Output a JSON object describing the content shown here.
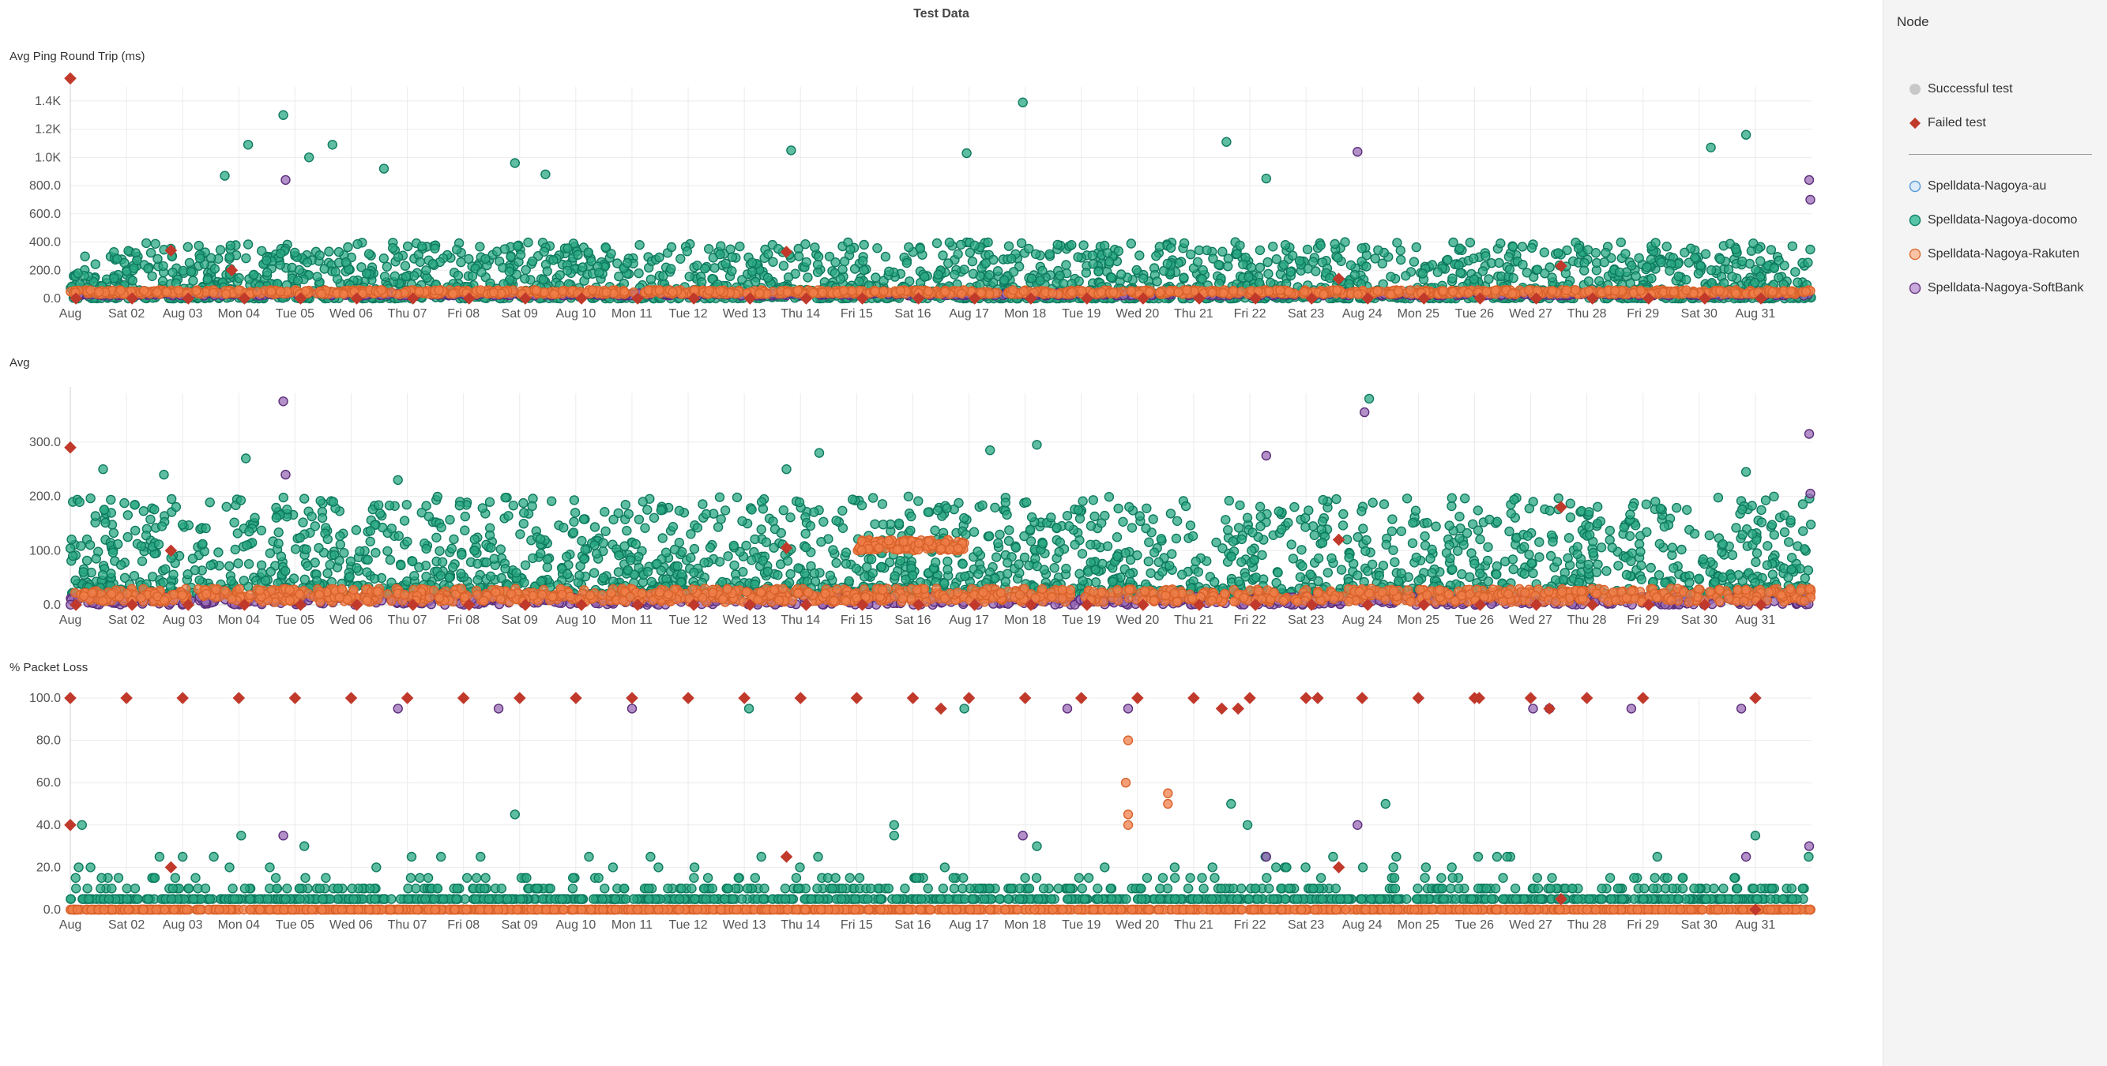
{
  "page": {
    "title": "Test Data"
  },
  "sidebar": {
    "title": "Node",
    "status_legend": [
      {
        "label": "Successful test",
        "shape": "circle",
        "color": "#c8c8c8"
      },
      {
        "label": "Failed test",
        "shape": "diamond",
        "color": "#c0392b"
      }
    ],
    "node_legend": [
      {
        "label": "Spelldata-Nagoya-au",
        "color": "#a9cdef",
        "stroke": "#5b9bd5"
      },
      {
        "label": "Spelldata-Nagoya-docomo",
        "color": "#57c4a8",
        "stroke": "#12856a"
      },
      {
        "label": "Spelldata-Nagoya-Rakuten",
        "color": "#f7a477",
        "stroke": "#e0703a"
      },
      {
        "label": "Spelldata-Nagoya-SoftBank",
        "color": "#b38bc9",
        "stroke": "#6c3d87"
      }
    ]
  },
  "colors": {
    "au": "#a9cdef",
    "docomo": "#2aa882",
    "docomo_stroke": "#0e7a5f",
    "rakuten": "#f07f4a",
    "rakuten_stroke": "#d9622a",
    "softbank": "#9a6bb5",
    "softbank_stroke": "#5b2d7a",
    "failed": "#c0392b"
  },
  "x_axis": {
    "start": "2025-08-01",
    "end": "2025-09-01",
    "tick_labels": [
      "Aug",
      "Sat 02",
      "Aug 03",
      "Mon 04",
      "Tue 05",
      "Wed 06",
      "Thu 07",
      "Fri 08",
      "Sat 09",
      "Aug 10",
      "Mon 11",
      "Tue 12",
      "Wed 13",
      "Thu 14",
      "Fri 15",
      "Sat 16",
      "Aug 17",
      "Mon 18",
      "Tue 19",
      "Wed 20",
      "Thu 21",
      "Fri 22",
      "Sat 23",
      "Aug 24",
      "Mon 25",
      "Tue 26",
      "Wed 27",
      "Thu 28",
      "Fri 29",
      "Sat 30",
      "Aug 31"
    ]
  },
  "chart_data": [
    {
      "type": "scatter",
      "title": "Avg Ping Round Trip (ms)",
      "x_range": [
        "2025-08-01",
        "2025-09-01"
      ],
      "ylim": [
        0,
        1500
      ],
      "y_ticks": [
        0,
        200,
        400,
        600,
        800,
        1000,
        1200,
        1400
      ],
      "y_tick_labels": [
        "0.0",
        "200.0",
        "400.0",
        "600.0",
        "800.0",
        "1.0K",
        "1.2K",
        "1.4K"
      ],
      "grid": true,
      "series": [
        {
          "name": "Spelldata-Nagoya-docomo",
          "typical_band": [
            0,
            400
          ],
          "outliers": [
            {
              "x": "2025-08-03T18:00",
              "y": 870
            },
            {
              "x": "2025-08-04T04:00",
              "y": 1090
            },
            {
              "x": "2025-08-04T19:00",
              "y": 1300
            },
            {
              "x": "2025-08-05T06:00",
              "y": 1000
            },
            {
              "x": "2025-08-05T16:00",
              "y": 1090
            },
            {
              "x": "2025-08-06T14:00",
              "y": 920
            },
            {
              "x": "2025-08-08T22:00",
              "y": 960
            },
            {
              "x": "2025-08-09T11:00",
              "y": 880
            },
            {
              "x": "2025-08-13T20:00",
              "y": 1050
            },
            {
              "x": "2025-08-16T23:00",
              "y": 1030
            },
            {
              "x": "2025-08-17T23:00",
              "y": 1390
            },
            {
              "x": "2025-08-21T14:00",
              "y": 1110
            },
            {
              "x": "2025-08-22T07:00",
              "y": 850
            },
            {
              "x": "2025-08-30T05:00",
              "y": 1070
            },
            {
              "x": "2025-08-30T20:00",
              "y": 1160
            }
          ]
        },
        {
          "name": "Spelldata-Nagoya-Rakuten",
          "typical_band": [
            30,
            60
          ]
        },
        {
          "name": "Spelldata-Nagoya-SoftBank",
          "typical_band": [
            20,
            40
          ],
          "outliers": [
            {
              "x": "2025-08-04T20:00",
              "y": 840
            },
            {
              "x": "2025-08-23T22:00",
              "y": 1040
            },
            {
              "x": "2025-08-31T23:00",
              "y": 840
            },
            {
              "x": "2025-08-31T23:30",
              "y": 700
            }
          ]
        }
      ],
      "failed": [
        {
          "x": "2025-08-01T00:00",
          "y": 1560
        },
        {
          "x": "2025-08-02T19:00",
          "y": 340
        },
        {
          "x": "2025-08-03T21:00",
          "y": 200
        },
        {
          "x": "2025-08-13T18:00",
          "y": 330
        },
        {
          "x": "2025-08-23T14:00",
          "y": 140
        },
        {
          "x": "2025-08-27T13:00",
          "y": 230
        }
      ]
    },
    {
      "type": "scatter",
      "title": "Avg",
      "x_range": [
        "2025-08-01",
        "2025-09-01"
      ],
      "ylim": [
        0,
        390
      ],
      "y_ticks": [
        0,
        100,
        200,
        300
      ],
      "y_tick_labels": [
        "0.0",
        "100.0",
        "200.0",
        "300.0"
      ],
      "grid": true,
      "series": [
        {
          "name": "Spelldata-Nagoya-docomo",
          "typical_band": [
            20,
            200
          ],
          "outliers": [
            {
              "x": "2025-08-01T14:00",
              "y": 250
            },
            {
              "x": "2025-08-02T16:00",
              "y": 240
            },
            {
              "x": "2025-08-04T03:00",
              "y": 270
            },
            {
              "x": "2025-08-06T20:00",
              "y": 230
            },
            {
              "x": "2025-08-13T18:00",
              "y": 250
            },
            {
              "x": "2025-08-14T08:00",
              "y": 280
            },
            {
              "x": "2025-08-17T09:00",
              "y": 285
            },
            {
              "x": "2025-08-18T05:00",
              "y": 295
            },
            {
              "x": "2025-08-24T03:00",
              "y": 380
            },
            {
              "x": "2025-08-30T20:00",
              "y": 245
            }
          ]
        },
        {
          "name": "Spelldata-Nagoya-Rakuten",
          "typical_band": [
            5,
            30
          ],
          "plateau": {
            "from": "2025-08-15T00:00",
            "to": "2025-08-16T22:00",
            "y": 110
          }
        },
        {
          "name": "Spelldata-Nagoya-SoftBank",
          "typical_band": [
            0,
            15
          ],
          "outliers": [
            {
              "x": "2025-08-04T19:00",
              "y": 375
            },
            {
              "x": "2025-08-04T20:00",
              "y": 240
            },
            {
              "x": "2025-08-22T07:00",
              "y": 275
            },
            {
              "x": "2025-08-24T01:00",
              "y": 355
            },
            {
              "x": "2025-08-31T23:00",
              "y": 315
            },
            {
              "x": "2025-08-31T23:30",
              "y": 205
            }
          ]
        }
      ],
      "failed": [
        {
          "x": "2025-08-01T00:00",
          "y": 290
        },
        {
          "x": "2025-08-02T19:00",
          "y": 100
        },
        {
          "x": "2025-08-13T18:00",
          "y": 105
        },
        {
          "x": "2025-08-23T14:00",
          "y": 120
        },
        {
          "x": "2025-08-27T13:00",
          "y": 180
        }
      ]
    },
    {
      "type": "scatter",
      "title": "% Packet Loss",
      "x_range": [
        "2025-08-01",
        "2025-09-01"
      ],
      "ylim": [
        0,
        100
      ],
      "y_ticks": [
        0,
        20,
        40,
        60,
        80,
        100
      ],
      "y_tick_labels": [
        "0.0",
        "20.0",
        "40.0",
        "60.0",
        "80.0",
        "100.0"
      ],
      "grid": true,
      "series": [
        {
          "name": "Spelldata-Nagoya-docomo",
          "levels": [
            5,
            10,
            15,
            20,
            25
          ],
          "outliers": [
            {
              "x": "2025-08-01T05:00",
              "y": 40
            },
            {
              "x": "2025-08-03T00:00",
              "y": 25
            },
            {
              "x": "2025-08-04T01:00",
              "y": 35
            },
            {
              "x": "2025-08-05T04:00",
              "y": 30
            },
            {
              "x": "2025-08-08T22:00",
              "y": 45
            },
            {
              "x": "2025-08-13T02:00",
              "y": 95
            },
            {
              "x": "2025-08-15T16:00",
              "y": 40
            },
            {
              "x": "2025-08-15T16:00",
              "y": 35
            },
            {
              "x": "2025-08-16T22:00",
              "y": 95
            },
            {
              "x": "2025-08-18T05:00",
              "y": 30
            },
            {
              "x": "2025-08-21T16:00",
              "y": 50
            },
            {
              "x": "2025-08-21T23:00",
              "y": 40
            },
            {
              "x": "2025-08-24T10:00",
              "y": 50
            },
            {
              "x": "2025-08-31T00:00",
              "y": 35
            }
          ]
        },
        {
          "name": "Spelldata-Nagoya-Rakuten",
          "base": 0,
          "outliers": [
            {
              "x": "2025-08-19T20:00",
              "y": 80
            },
            {
              "x": "2025-08-19T19:00",
              "y": 60
            },
            {
              "x": "2025-08-19T20:00",
              "y": 45
            },
            {
              "x": "2025-08-19T20:00",
              "y": 40
            },
            {
              "x": "2025-08-20T13:00",
              "y": 55
            },
            {
              "x": "2025-08-20T13:00",
              "y": 50
            }
          ]
        },
        {
          "name": "Spelldata-Nagoya-SoftBank",
          "outliers": [
            {
              "x": "2025-08-06T20:00",
              "y": 95
            },
            {
              "x": "2025-08-08T15:00",
              "y": 95
            },
            {
              "x": "2025-08-11T00:00",
              "y": 95
            },
            {
              "x": "2025-08-18T18:00",
              "y": 95
            },
            {
              "x": "2025-08-19T20:00",
              "y": 95
            },
            {
              "x": "2025-08-27T01:00",
              "y": 95
            },
            {
              "x": "2025-08-27T08:00",
              "y": 95
            },
            {
              "x": "2025-08-28T19:00",
              "y": 95
            },
            {
              "x": "2025-08-30T18:00",
              "y": 95
            },
            {
              "x": "2025-08-04T19:00",
              "y": 35
            },
            {
              "x": "2025-08-17T23:00",
              "y": 35
            },
            {
              "x": "2025-08-22T07:00",
              "y": 25
            },
            {
              "x": "2025-08-23T22:00",
              "y": 40
            },
            {
              "x": "2025-08-30T20:00",
              "y": 25
            },
            {
              "x": "2025-08-31T23:00",
              "y": 30
            }
          ]
        }
      ],
      "failed": [
        {
          "x": "2025-08-01T00:00",
          "y": 100
        },
        {
          "x": "2025-08-02T00:00",
          "y": 100
        },
        {
          "x": "2025-08-03T00:00",
          "y": 100
        },
        {
          "x": "2025-08-04T00:00",
          "y": 100
        },
        {
          "x": "2025-08-05T00:00",
          "y": 100
        },
        {
          "x": "2025-08-06T00:00",
          "y": 100
        },
        {
          "x": "2025-08-07T00:00",
          "y": 100
        },
        {
          "x": "2025-08-08T00:00",
          "y": 100
        },
        {
          "x": "2025-08-09T00:00",
          "y": 100
        },
        {
          "x": "2025-08-10T00:00",
          "y": 100
        },
        {
          "x": "2025-08-11T00:00",
          "y": 100
        },
        {
          "x": "2025-08-12T00:00",
          "y": 100
        },
        {
          "x": "2025-08-13T00:00",
          "y": 100
        },
        {
          "x": "2025-08-14T00:00",
          "y": 100
        },
        {
          "x": "2025-08-15T00:00",
          "y": 100
        },
        {
          "x": "2025-08-16T00:00",
          "y": 100
        },
        {
          "x": "2025-08-16T12:00",
          "y": 95
        },
        {
          "x": "2025-08-17T00:00",
          "y": 100
        },
        {
          "x": "2025-08-18T00:00",
          "y": 100
        },
        {
          "x": "2025-08-19T00:00",
          "y": 100
        },
        {
          "x": "2025-08-20T00:00",
          "y": 100
        },
        {
          "x": "2025-08-21T00:00",
          "y": 100
        },
        {
          "x": "2025-08-21T12:00",
          "y": 95
        },
        {
          "x": "2025-08-21T19:00",
          "y": 95
        },
        {
          "x": "2025-08-22T00:00",
          "y": 100
        },
        {
          "x": "2025-08-23T00:00",
          "y": 100
        },
        {
          "x": "2025-08-23T05:00",
          "y": 100
        },
        {
          "x": "2025-08-24T00:00",
          "y": 100
        },
        {
          "x": "2025-08-25T00:00",
          "y": 100
        },
        {
          "x": "2025-08-26T00:00",
          "y": 100
        },
        {
          "x": "2025-08-26T02:00",
          "y": 100
        },
        {
          "x": "2025-08-27T00:00",
          "y": 100
        },
        {
          "x": "2025-08-27T08:00",
          "y": 95
        },
        {
          "x": "2025-08-28T00:00",
          "y": 100
        },
        {
          "x": "2025-08-29T00:00",
          "y": 100
        },
        {
          "x": "2025-08-31T00:00",
          "y": 100
        },
        {
          "x": "2025-08-01T00:00",
          "y": 40
        },
        {
          "x": "2025-08-02T19:00",
          "y": 20
        },
        {
          "x": "2025-08-13T18:00",
          "y": 25
        },
        {
          "x": "2025-08-23T14:00",
          "y": 20
        },
        {
          "x": "2025-08-27T13:00",
          "y": 5
        },
        {
          "x": "2025-08-31T00:00",
          "y": 0
        }
      ]
    }
  ]
}
